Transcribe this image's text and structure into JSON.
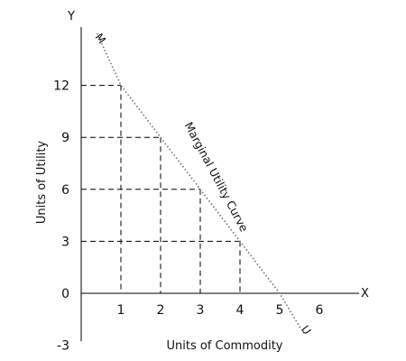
{
  "chart_data": {
    "type": "line",
    "title": "",
    "xlabel": "Units of Commodity",
    "ylabel": "Units of Utility",
    "x_axis_name": "X",
    "y_axis_name": "Y",
    "xlim": [
      0,
      7
    ],
    "ylim": [
      -3,
      14
    ],
    "x_ticks": [
      "1",
      "2",
      "3",
      "4",
      "5",
      "6"
    ],
    "y_ticks": [
      "-3",
      "0",
      "3",
      "6",
      "9",
      "12"
    ],
    "grid": false,
    "series": [
      {
        "name": "Marginal Utility Curve",
        "x": [
          0.4,
          1,
          2,
          3,
          4,
          5,
          5.6
        ],
        "y": [
          15,
          12,
          9,
          6,
          3,
          0,
          -2.3
        ]
      }
    ],
    "guide_points": [
      {
        "x": 1,
        "y": 12
      },
      {
        "x": 2,
        "y": 9
      },
      {
        "x": 3,
        "y": 6
      },
      {
        "x": 4,
        "y": 3
      }
    ],
    "curve_start_label": "M",
    "curve_end_label": "U",
    "curve_style": "dotted",
    "colors": {
      "curve": "#777777",
      "axes": "#000000",
      "guides": "#000000"
    }
  }
}
